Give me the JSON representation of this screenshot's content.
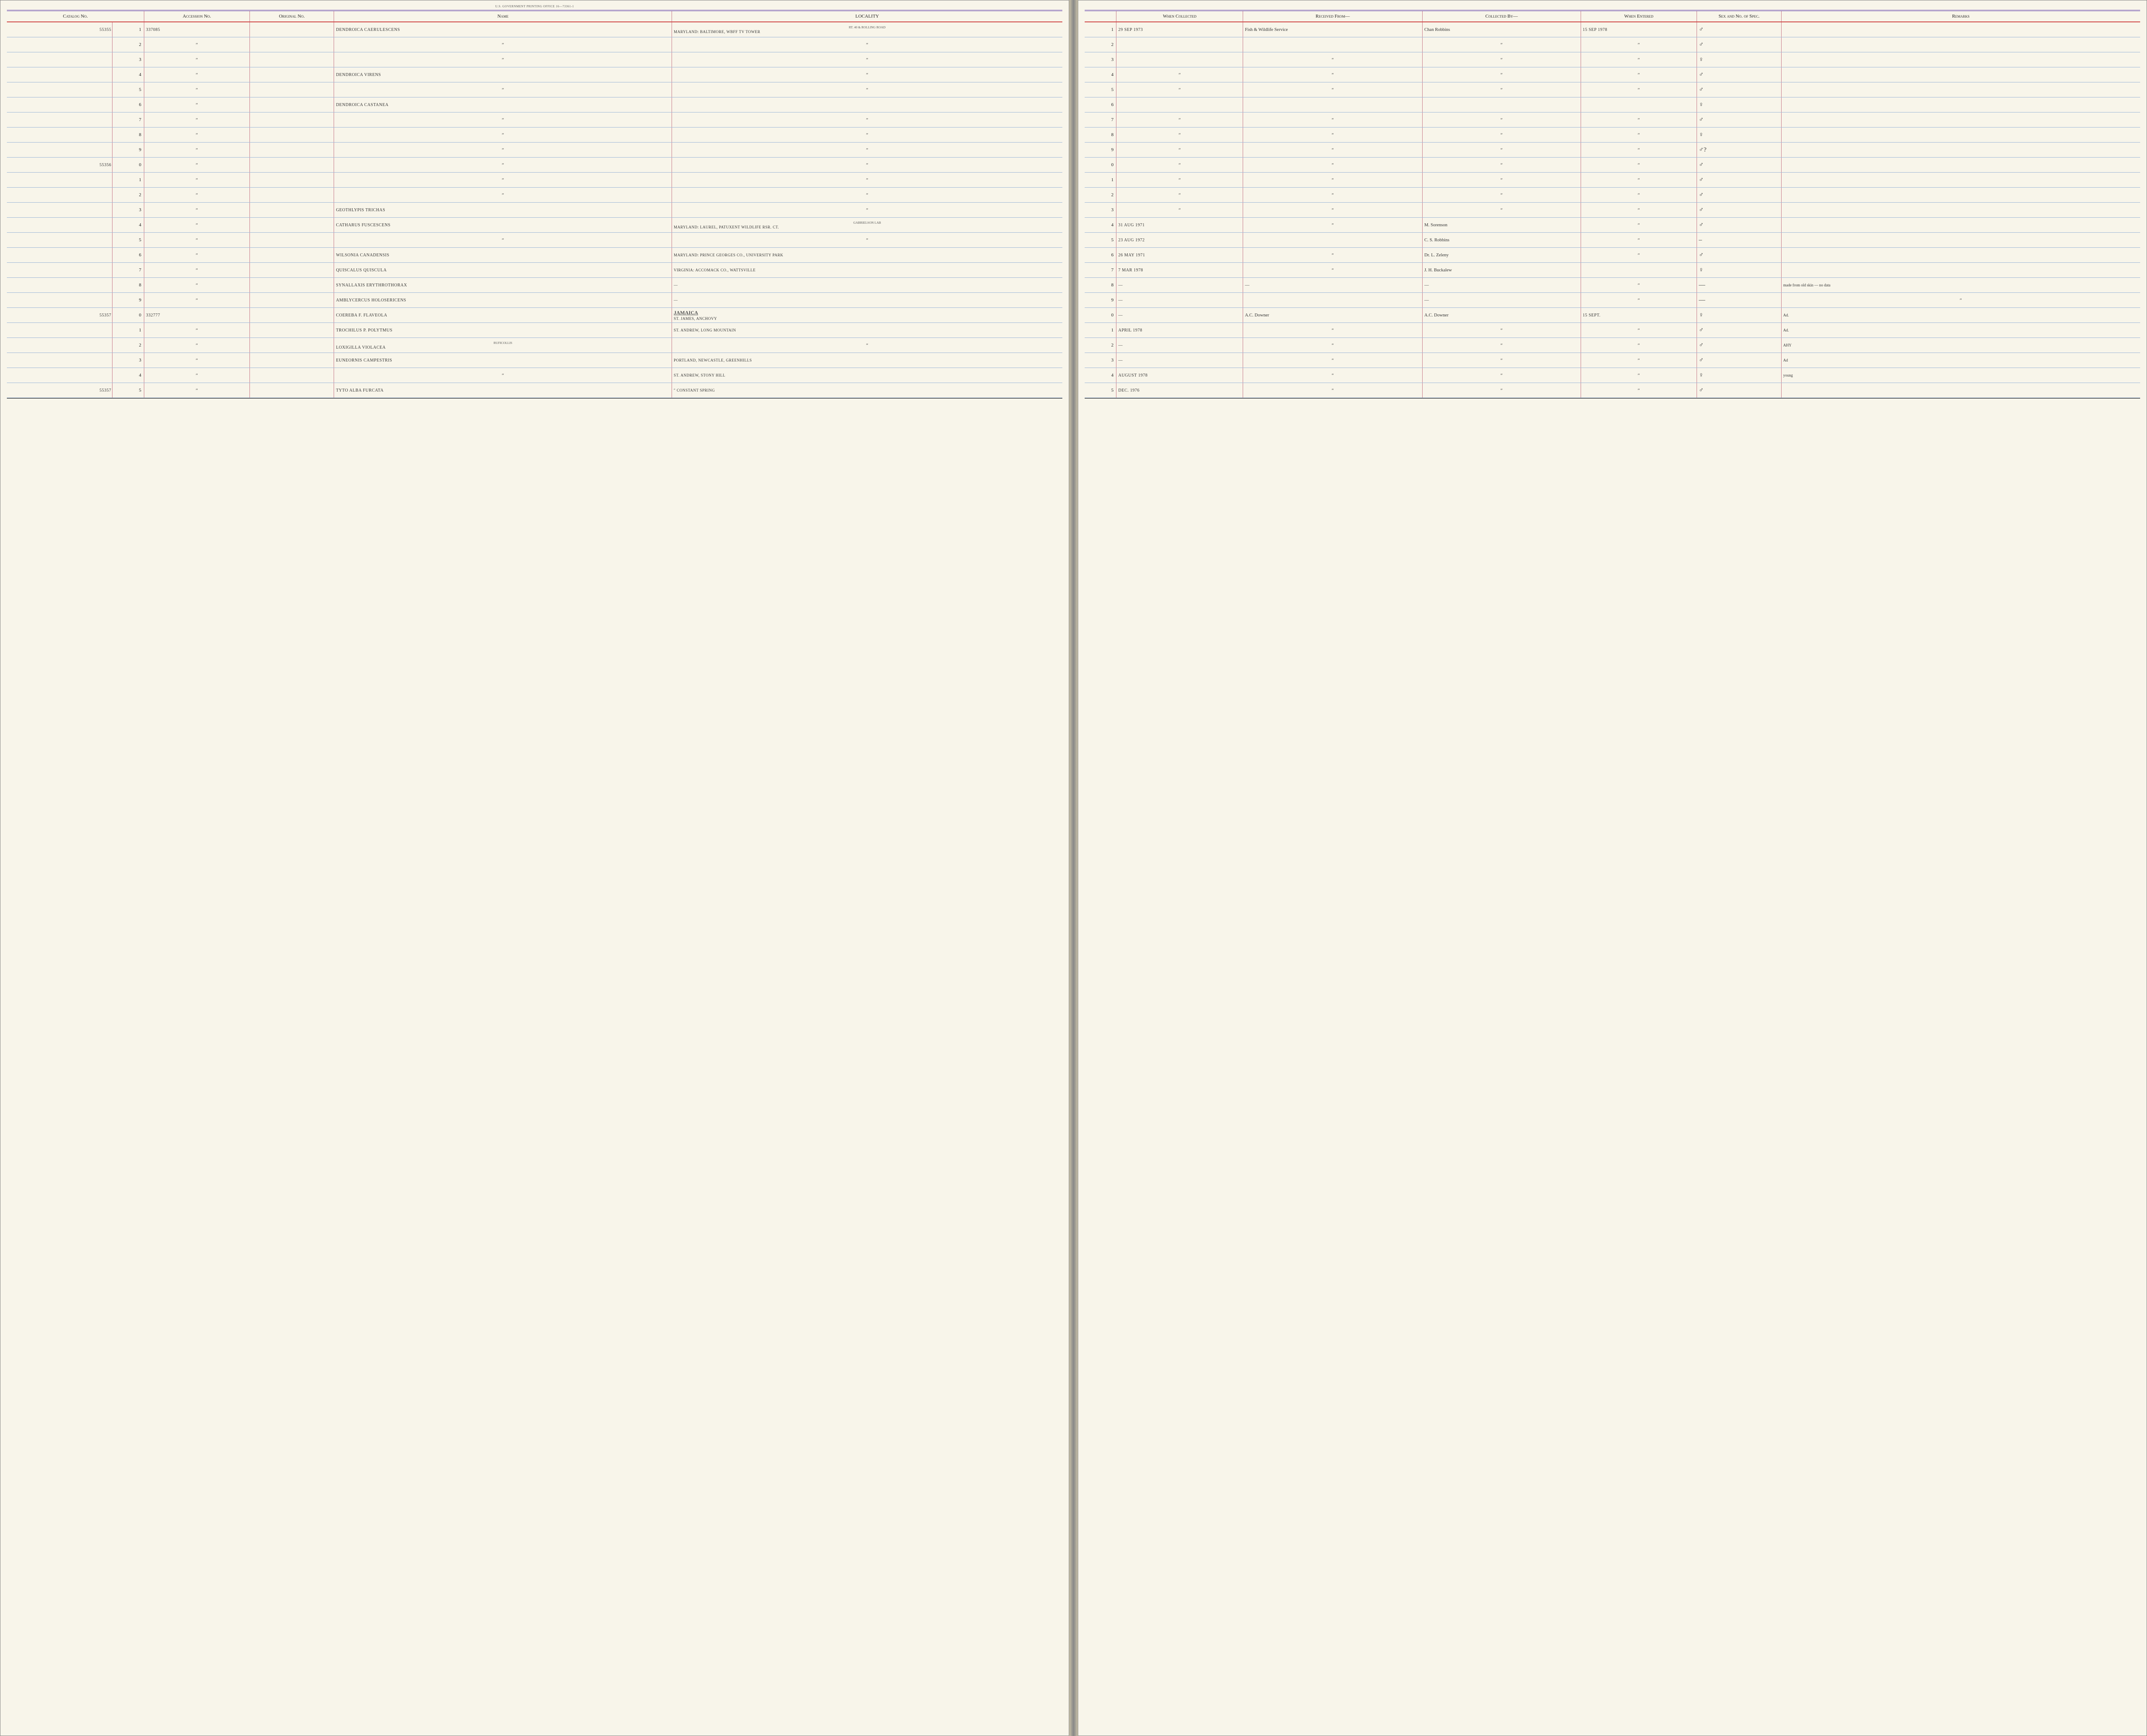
{
  "print_note": "U.S. GOVERNMENT PRINTING OFFICE    16—73361-1",
  "headers_left": {
    "catalog": "Catalog No.",
    "accession": "Accession No.",
    "original": "Original No.",
    "name": "Name",
    "locality": "LOCALITY"
  },
  "headers_right": {
    "when_collected": "When Collected",
    "received": "Received From—",
    "collected": "Collected By—",
    "when_entered": "When Entered",
    "sex": "Sex and No. of Spec.",
    "remarks": "Remarks"
  },
  "rows": [
    {
      "catalog": "55355",
      "d": "1",
      "acc": "337085",
      "name": "Dendroica caerulescens",
      "loc": "Maryland: Baltimore, WBFF TV tower",
      "loc_note": "Rt. 40 & Rolling Road",
      "when": "29 Sep 1973",
      "recv": "Fish & Wildlife Service",
      "coll": "Chan Robbins",
      "ent": "15 Sep 1978",
      "sex": "♂",
      "rem": ""
    },
    {
      "catalog": "",
      "d": "2",
      "acc": "″",
      "name": "″",
      "loc": "″",
      "when": "",
      "recv": "",
      "coll": "″",
      "ent": "″",
      "sex": "♂",
      "rem": ""
    },
    {
      "catalog": "",
      "d": "3",
      "acc": "″",
      "name": "″",
      "loc": "″",
      "when": "",
      "recv": "″",
      "coll": "″",
      "ent": "″",
      "sex": "♀",
      "rem": ""
    },
    {
      "catalog": "",
      "d": "4",
      "acc": "″",
      "name": "Dendroica virens",
      "loc": "″",
      "when": "″",
      "recv": "″",
      "coll": "″",
      "ent": "″",
      "sex": "♂",
      "rem": ""
    },
    {
      "catalog": "",
      "d": "5",
      "acc": "″",
      "name": "″",
      "loc": "″",
      "when": "″",
      "recv": "″",
      "coll": "″",
      "ent": "″",
      "sex": "♂",
      "rem": ""
    },
    {
      "catalog": "",
      "d": "6",
      "acc": "″",
      "name": "Dendroica castanea",
      "loc": "",
      "when": "",
      "recv": "",
      "coll": "",
      "ent": "",
      "sex": "♀",
      "rem": ""
    },
    {
      "catalog": "",
      "d": "7",
      "acc": "″",
      "name": "″",
      "loc": "″",
      "when": "″",
      "recv": "″",
      "coll": "″",
      "ent": "″",
      "sex": "♂",
      "rem": ""
    },
    {
      "catalog": "",
      "d": "8",
      "acc": "″",
      "name": "″",
      "loc": "″",
      "when": "″",
      "recv": "″",
      "coll": "″",
      "ent": "″",
      "sex": "♀",
      "rem": ""
    },
    {
      "catalog": "",
      "d": "9",
      "acc": "″",
      "name": "″",
      "loc": "″",
      "when": "″",
      "recv": "″",
      "coll": "″",
      "ent": "″",
      "sex": "♂?",
      "rem": ""
    },
    {
      "catalog": "55356",
      "d": "0",
      "acc": "″",
      "name": "″",
      "loc": "″",
      "when": "″",
      "recv": "″",
      "coll": "″",
      "ent": "″",
      "sex": "♂",
      "rem": ""
    },
    {
      "catalog": "",
      "d": "1",
      "acc": "″",
      "name": "″",
      "loc": "″",
      "when": "″",
      "recv": "″",
      "coll": "″",
      "ent": "″",
      "sex": "♂",
      "rem": ""
    },
    {
      "catalog": "",
      "d": "2",
      "acc": "″",
      "name": "″",
      "loc": "″",
      "when": "″",
      "recv": "″",
      "coll": "″",
      "ent": "″",
      "sex": "♂",
      "rem": ""
    },
    {
      "catalog": "",
      "d": "3",
      "acc": "″",
      "name": "Geothlypis trichas",
      "loc": "″",
      "when": "″",
      "recv": "″",
      "coll": "″",
      "ent": "″",
      "sex": "♂",
      "rem": ""
    },
    {
      "catalog": "",
      "d": "4",
      "acc": "″",
      "name": "Catharus fuscescens",
      "loc": "Maryland: Laurel, Patuxent Wildlife Rsr. Ct.",
      "loc_note": "Gabrielson Lab",
      "when": "31 Aug 1971",
      "recv": "″",
      "coll": "M. Sorenson",
      "ent": "″",
      "sex": "♂",
      "rem": ""
    },
    {
      "catalog": "",
      "d": "5",
      "acc": "″",
      "name": "″",
      "loc": "″",
      "when": "23 Aug 1972",
      "recv": "",
      "coll": "C. S. Robbins",
      "ent": "″",
      "sex": "–",
      "rem": ""
    },
    {
      "catalog": "",
      "d": "6",
      "acc": "″",
      "name": "Wilsonia canadensis",
      "loc": "Maryland: Prince Georges Co., University Park",
      "when": "26 May 1971",
      "recv": "″",
      "coll": "Dr. L. Zeleny",
      "ent": "″",
      "sex": "♂",
      "rem": ""
    },
    {
      "catalog": "",
      "d": "7",
      "acc": "″",
      "name": "Quiscalus quiscula",
      "loc": "Virginia: Accomack Co., Wattsville",
      "when": "7 Mar 1978",
      "recv": "″",
      "coll": "J. H. Buckalew",
      "ent": "",
      "sex": "♀",
      "rem": ""
    },
    {
      "catalog": "",
      "d": "8",
      "acc": "″",
      "name": "Synallaxis erythrothorax",
      "loc": "—",
      "when": "—",
      "recv": "—",
      "coll": "—",
      "ent": "″",
      "sex": "—",
      "rem": "made from old skin — no data"
    },
    {
      "catalog": "",
      "d": "9",
      "acc": "″",
      "name": "Amblycercus holosericens",
      "loc": "—",
      "when": "—",
      "recv": "",
      "coll": "—",
      "ent": "″",
      "sex": "—",
      "rem": "″"
    },
    {
      "catalog": "55357",
      "d": "0",
      "acc": "332777",
      "name": "Coereba f. flaveola",
      "loc": "St. James, Anchovy",
      "loc_note": "Jamaica",
      "when": "—",
      "recv": "A.C. Downer",
      "coll": "A.C. Downer",
      "ent": "15 Sept.",
      "sex": "♀",
      "rem": "Ad."
    },
    {
      "catalog": "",
      "d": "1",
      "acc": "″",
      "name": "Trochilus p. polytmus",
      "loc": "St. Andrew, Long Mountain",
      "when": "April 1978",
      "recv": "″",
      "coll": "″",
      "ent": "″",
      "sex": "♂",
      "rem": "Ad."
    },
    {
      "catalog": "",
      "d": "2",
      "acc": "″",
      "name": "Loxigilla violacea",
      "name_note": "ruficollis",
      "loc": "″",
      "when": "—",
      "recv": "″",
      "coll": "″",
      "ent": "″",
      "sex": "♂",
      "rem": "AHY"
    },
    {
      "catalog": "",
      "d": "3",
      "acc": "″",
      "name": "Euneornis campestris",
      "loc": "Portland, Newcastle, Greenhills",
      "when": "—",
      "recv": "″",
      "coll": "″",
      "ent": "″",
      "sex": "♂",
      "rem": "Ad"
    },
    {
      "catalog": "",
      "d": "4",
      "acc": "″",
      "name": "″",
      "loc": "St. Andrew, Stony Hill",
      "when": "August 1978",
      "recv": "″",
      "coll": "″",
      "ent": "″",
      "sex": "♀",
      "rem": "young"
    },
    {
      "catalog": "55357",
      "d": "5",
      "acc": "″",
      "name": "Tyto alba furcata",
      "loc": "″    Constant Spring",
      "when": "Dec. 1976",
      "recv": "″",
      "coll": "″",
      "ent": "″",
      "sex": "♂",
      "rem": ""
    }
  ]
}
